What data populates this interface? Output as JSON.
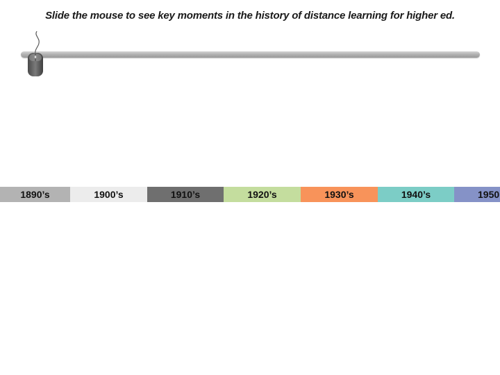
{
  "instruction": "Slide the mouse to see key moments in the history of distance learning for higher ed.",
  "slider": {
    "handle_icon": "computer-mouse-icon",
    "position": 0
  },
  "timeline": [
    {
      "label": "1890’s",
      "color": "#b3b3b3"
    },
    {
      "label": "1900’s",
      "color": "#ececec"
    },
    {
      "label": "1910’s",
      "color": "#6f6f6f"
    },
    {
      "label": "1920’s",
      "color": "#c4dd9e"
    },
    {
      "label": "1930’s",
      "color": "#f8935a"
    },
    {
      "label": "1940’s",
      "color": "#7ccdc6"
    },
    {
      "label": "1950",
      "color": "#8592c7"
    }
  ]
}
